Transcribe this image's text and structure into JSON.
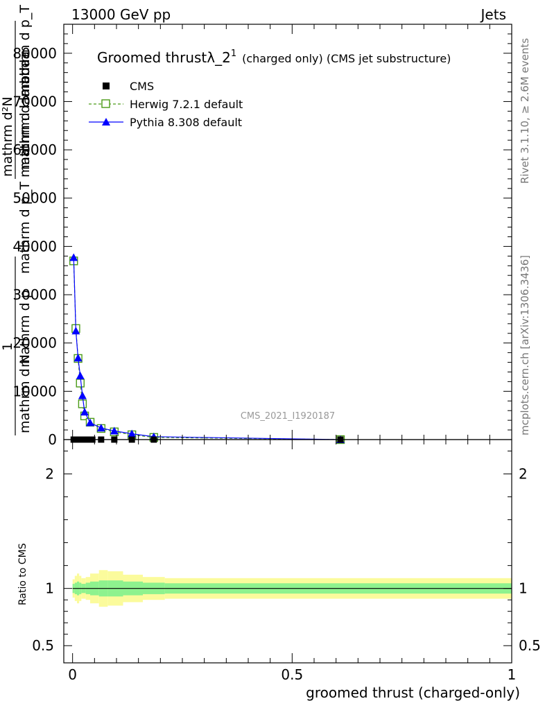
{
  "header": {
    "energy_label": "13000 GeV pp",
    "category_label": "Jets"
  },
  "side": {
    "rivet_label": "Rivet 3.1.10, ≥ 2.6M events",
    "mcplots_label": "mcplots.cern.ch [arXiv:1306.3436]"
  },
  "chart_data": [
    {
      "type": "line",
      "title": "Groomed thrustλ_2",
      "title_superscript": "1",
      "subtitle": "(charged only) (CMS jet substructure)",
      "watermark": "CMS_2021_I1920187",
      "ylabel_numerator": "1",
      "ylabel_parts": [
        "mathrm d N",
        "mathrm d p",
        "mathrm d p_T mathrm d lambda",
        "mathrm d²N",
        "mathrm d lambda",
        "mathrm d p_T mathrm d"
      ],
      "ylabel": "1 / mathrm d N   mathrm d²N / mathrm d p_T mathrm d lambda",
      "xlim": [
        -0.02,
        1.0
      ],
      "ylim": [
        0,
        86000
      ],
      "yticks": [
        0,
        10000,
        20000,
        30000,
        40000,
        50000,
        60000,
        70000,
        80000
      ],
      "ytick_labels": [
        "0",
        "10000",
        "20000",
        "30000",
        "40000",
        "50000",
        "60000",
        "70000",
        "80000"
      ],
      "legend": [
        {
          "name": "CMS",
          "marker": "filled-square",
          "color": "#000000"
        },
        {
          "name": "Herwig 7.2.1 default",
          "marker": "open-square",
          "color": "#4a9a16"
        },
        {
          "name": "Pythia 8.308 default",
          "marker": "filled-triangle",
          "color": "#0000ff"
        }
      ],
      "series": [
        {
          "name": "CMS",
          "x": [
            0.0025,
            0.0075,
            0.0125,
            0.0175,
            0.025,
            0.035,
            0.045,
            0.065,
            0.095,
            0.135,
            0.185,
            0.61
          ],
          "y": [
            0,
            0,
            0,
            0,
            0,
            0,
            0,
            0,
            0,
            0,
            0,
            0
          ]
        },
        {
          "name": "Herwig 7.2.1 default",
          "x": [
            0.0025,
            0.0075,
            0.0125,
            0.0175,
            0.0225,
            0.0275,
            0.04,
            0.065,
            0.095,
            0.135,
            0.185,
            0.61
          ],
          "y": [
            37000,
            23000,
            16800,
            11700,
            7400,
            4900,
            3600,
            2300,
            1600,
            1000,
            450,
            0
          ]
        },
        {
          "name": "Pythia 8.308 default",
          "x": [
            0.0025,
            0.0075,
            0.0125,
            0.0175,
            0.0225,
            0.0275,
            0.04,
            0.065,
            0.095,
            0.135,
            0.185,
            0.61
          ],
          "y": [
            37700,
            22500,
            16900,
            13200,
            9100,
            5700,
            3500,
            2400,
            1800,
            1200,
            600,
            0
          ]
        }
      ]
    },
    {
      "type": "line",
      "ylabel": "Ratio to CMS",
      "xlabel": "groomed thrust (charged-only)",
      "xlim": [
        -0.02,
        1.0
      ],
      "ylim": [
        0.35,
        2.3
      ],
      "yticks": [
        0.5,
        1,
        2
      ],
      "ytick_labels": [
        "0.5",
        "1",
        "2"
      ],
      "xticks": [
        0,
        0.5,
        1
      ],
      "xtick_labels": [
        "0",
        "0.5",
        "1"
      ],
      "reference": 1,
      "bands": {
        "edges": [
          0,
          0.005,
          0.01,
          0.015,
          0.02,
          0.03,
          0.04,
          0.06,
          0.08,
          0.115,
          0.16,
          0.21,
          1.0
        ],
        "inner": [
          0.04,
          0.05,
          0.06,
          0.05,
          0.04,
          0.05,
          0.06,
          0.07,
          0.07,
          0.06,
          0.05,
          0.045
        ],
        "outer": [
          0.08,
          0.11,
          0.13,
          0.11,
          0.09,
          0.1,
          0.13,
          0.16,
          0.15,
          0.12,
          0.1,
          0.09
        ]
      }
    }
  ]
}
